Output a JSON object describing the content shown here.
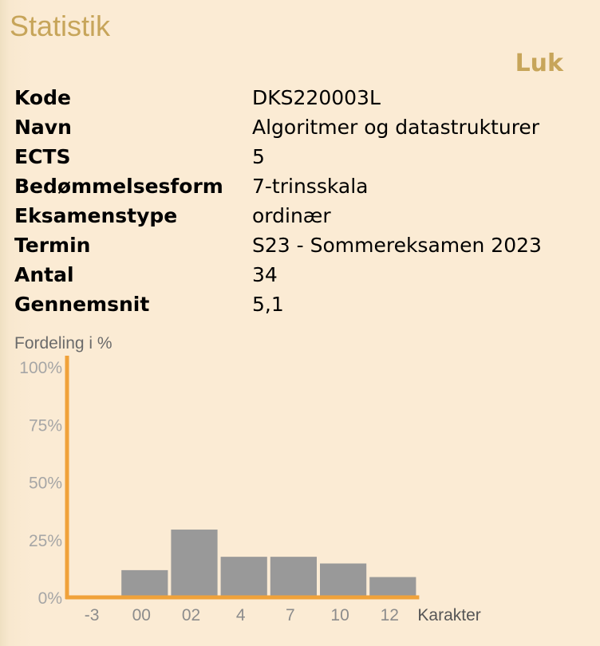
{
  "title": "Statistik",
  "close_label": "Luk",
  "info": [
    {
      "label": "Kode",
      "value": "DKS220003L"
    },
    {
      "label": "Navn",
      "value": "Algoritmer og datastrukturer"
    },
    {
      "label": "ECTS",
      "value": "5"
    },
    {
      "label": "Bedømmelsesform",
      "value": "7-trinsskala"
    },
    {
      "label": "Eksamenstype",
      "value": "ordinær"
    },
    {
      "label": "Termin",
      "value": "S23 - Sommereksamen 2023"
    },
    {
      "label": "Antal",
      "value": "34"
    },
    {
      "label": "Gennemsnit",
      "value": "5,1"
    }
  ],
  "chart_data": {
    "type": "bar",
    "title": "Fordeling i %",
    "xlabel": "Karakter",
    "ylabel": "",
    "categories": [
      "-3",
      "00",
      "02",
      "4",
      "7",
      "10",
      "12"
    ],
    "values": [
      0,
      11.8,
      29.4,
      17.6,
      17.6,
      14.7,
      8.8
    ],
    "yticks": [
      "0%",
      "25%",
      "50%",
      "75%",
      "100%"
    ],
    "ylim": [
      0,
      100
    ],
    "colors": {
      "bar": "#999999",
      "axis": "#f0a23a"
    }
  }
}
